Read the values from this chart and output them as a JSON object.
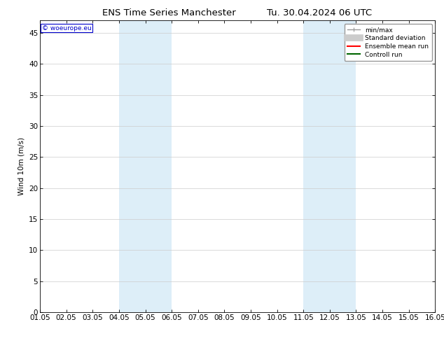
{
  "title_left": "ENS Time Series Manchester",
  "title_right": "Tu. 30.04.2024 06 UTC",
  "ylabel": "Wind 10m (m/s)",
  "xlim": [
    0,
    15
  ],
  "ylim": [
    0,
    47
  ],
  "yticks": [
    0,
    5,
    10,
    15,
    20,
    25,
    30,
    35,
    40,
    45
  ],
  "xtick_labels": [
    "01.05",
    "02.05",
    "03.05",
    "04.05",
    "05.05",
    "06.05",
    "07.05",
    "08.05",
    "09.05",
    "10.05",
    "11.05",
    "12.05",
    "13.05",
    "14.05",
    "15.05",
    "16.05"
  ],
  "xtick_positions": [
    0,
    1,
    2,
    3,
    4,
    5,
    6,
    7,
    8,
    9,
    10,
    11,
    12,
    13,
    14,
    15
  ],
  "shaded_regions": [
    {
      "xmin": 3,
      "xmax": 5,
      "color": "#ddeef8"
    },
    {
      "xmin": 10,
      "xmax": 12,
      "color": "#ddeef8"
    }
  ],
  "watermark_text": "© woeurope.eu",
  "watermark_color": "#0000cc",
  "background_color": "#ffffff",
  "plot_bg_color": "#ffffff",
  "legend_items": [
    {
      "label": "min/max",
      "color": "#999999",
      "lw": 1.0
    },
    {
      "label": "Standard deviation",
      "color": "#cccccc",
      "lw": 7
    },
    {
      "label": "Ensemble mean run",
      "color": "#ff0000",
      "lw": 1.5
    },
    {
      "label": "Controll run",
      "color": "#006600",
      "lw": 1.5
    }
  ],
  "font_size": 7.5,
  "title_font_size": 9.5
}
